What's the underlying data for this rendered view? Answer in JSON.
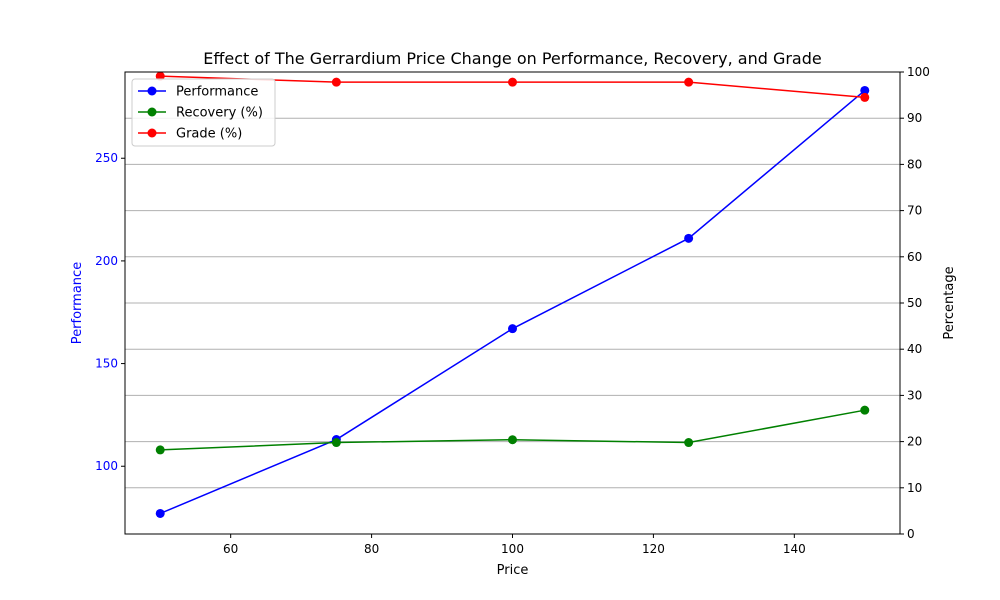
{
  "chart_data": {
    "type": "line",
    "title": "Effect of The Gerrardium Price Change on Performance, Recovery, and Grade",
    "xlabel": "Price",
    "ylabel_left": "Performance",
    "ylabel_right": "Percentage",
    "xlim": [
      45,
      155
    ],
    "ylim_left": [
      67,
      292
    ],
    "ylim_right": [
      0,
      100
    ],
    "x_ticks": [
      60,
      80,
      100,
      120,
      140
    ],
    "y_left_ticks": [
      100,
      150,
      200,
      250
    ],
    "y_right_ticks": [
      0,
      10,
      20,
      30,
      40,
      50,
      60,
      70,
      80,
      90,
      100
    ],
    "grid": "horizontal, right axis",
    "legend_position": "top-left",
    "x": [
      50,
      75,
      100,
      125,
      150
    ],
    "series": [
      {
        "name": "Performance",
        "axis": "left",
        "color": "#0000ff",
        "values": [
          77,
          113,
          167,
          211,
          283
        ]
      },
      {
        "name": "Recovery (%)",
        "axis": "right",
        "color": "#008000",
        "values": [
          18.2,
          19.8,
          20.4,
          19.8,
          26.8
        ]
      },
      {
        "name": "Grade (%)",
        "axis": "right",
        "color": "#ff0000",
        "values": [
          99.1,
          97.8,
          97.8,
          97.8,
          94.5
        ]
      }
    ]
  }
}
